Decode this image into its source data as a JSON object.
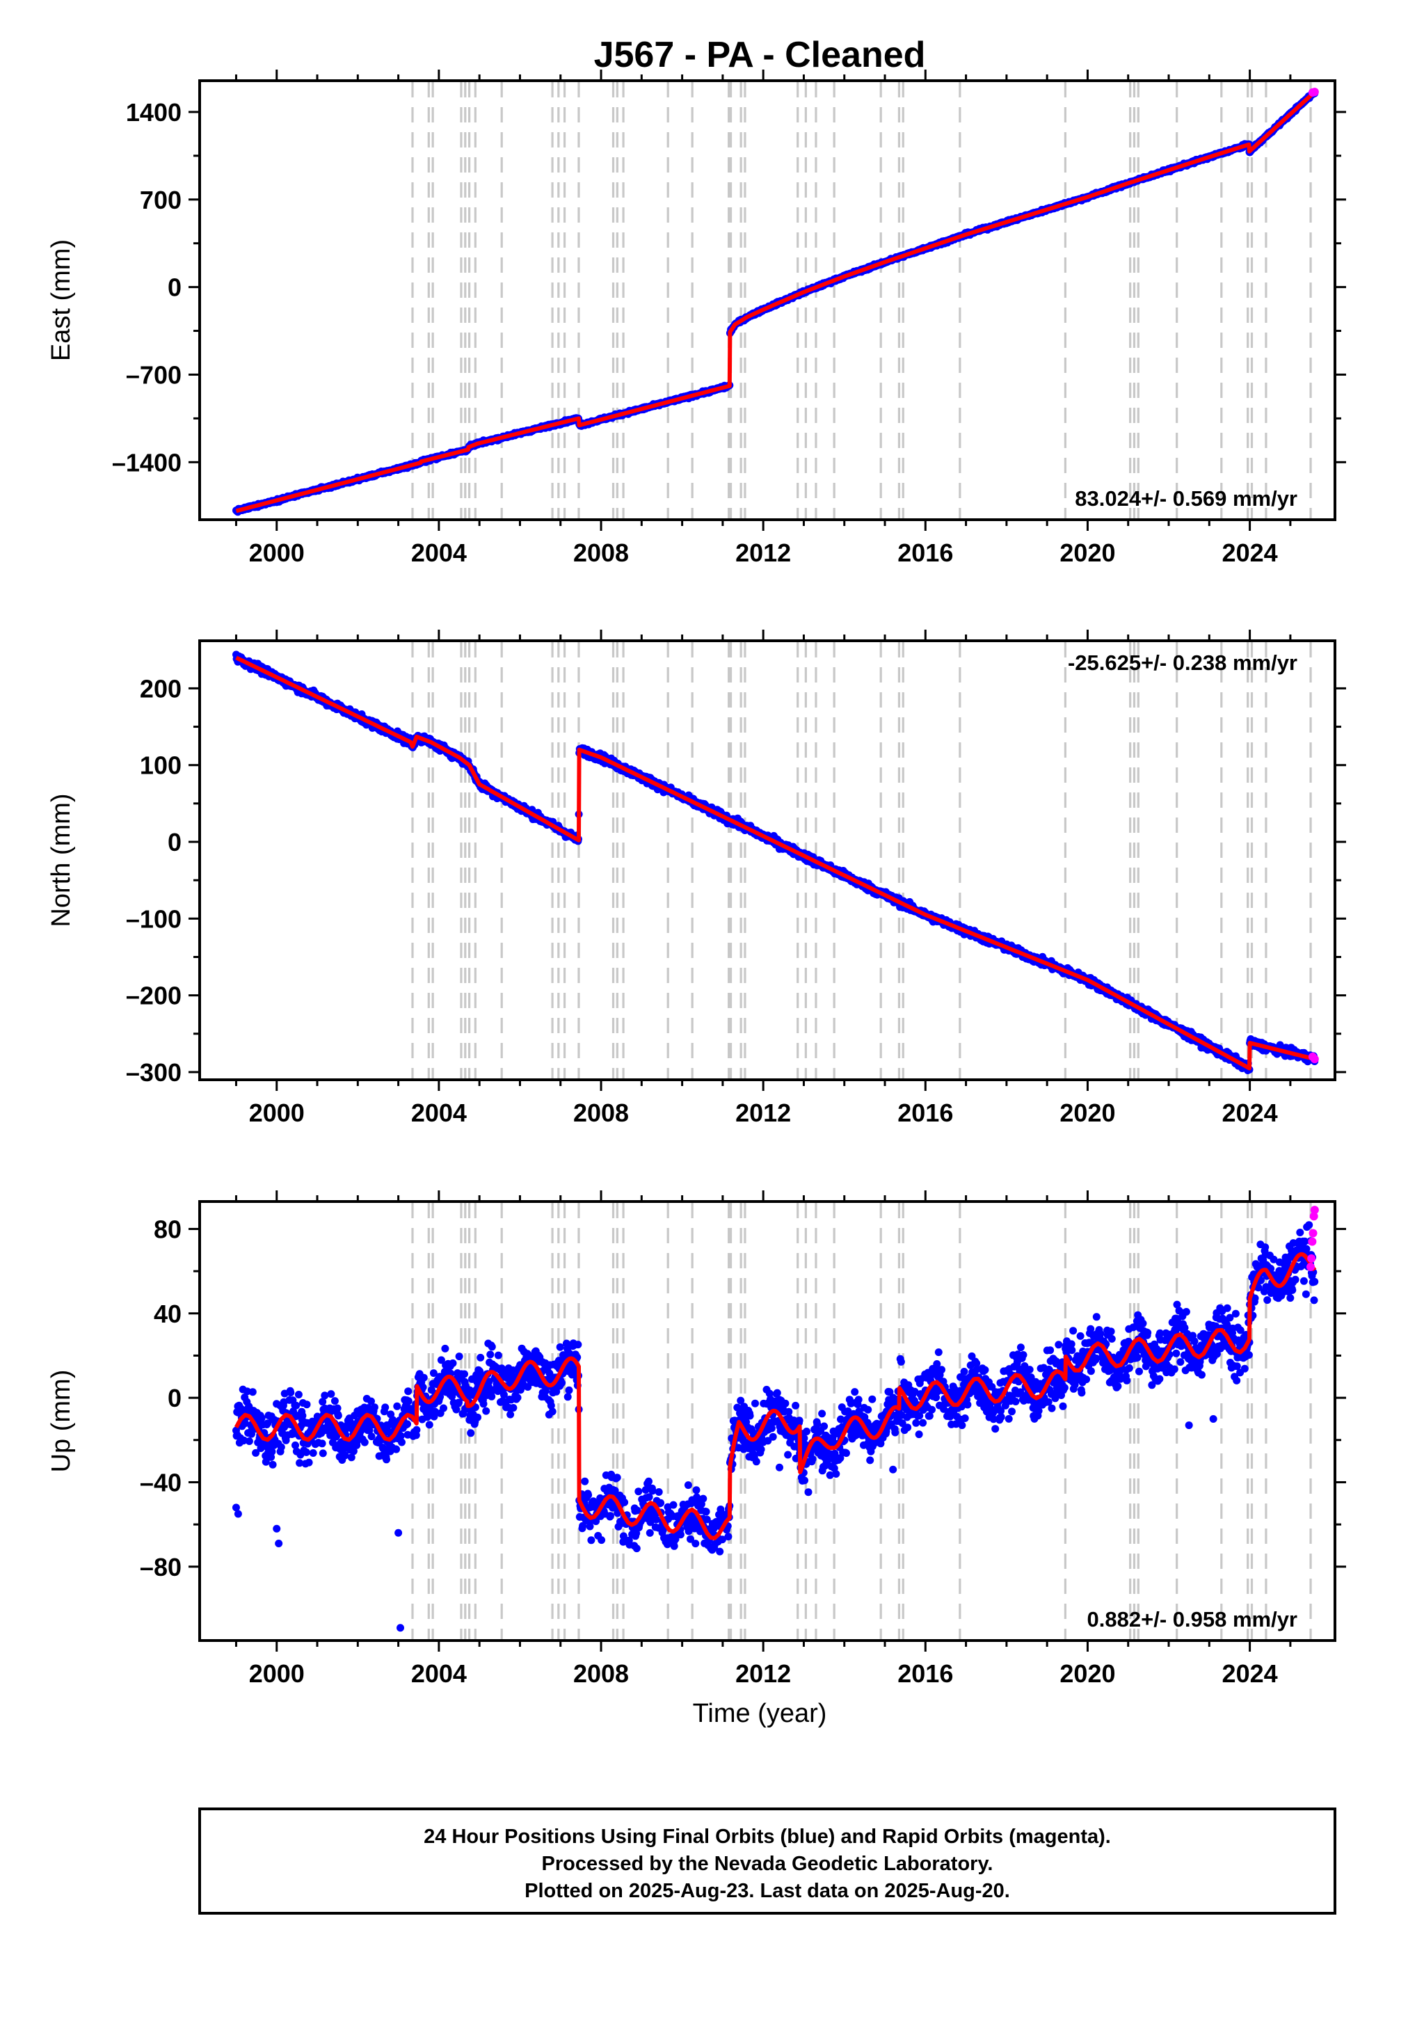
{
  "title": "J567  - PA - Cleaned",
  "xlabel": "Time (year)",
  "x_ticks": [
    "2000",
    "2004",
    "2008",
    "2012",
    "2016",
    "2020",
    "2024"
  ],
  "footer": {
    "line1": "24 Hour Positions Using Final Orbits (blue) and Rapid Orbits (magenta).",
    "line2": "Processed by the Nevada Geodetic Laboratory.",
    "line3": "Plotted on 2025-Aug-23. Last data on 2025-Aug-20."
  },
  "colors": {
    "final_orbits": "#0000ff",
    "rapid_orbits": "#ff00ff",
    "model": "#ff0000",
    "event_lines": "#c8c8c8"
  },
  "chart_data": [
    {
      "type": "scatter",
      "component": "east",
      "ylabel": "East (mm)",
      "xlim": [
        1998.1,
        2026.1
      ],
      "ylim": [
        -1860,
        1650
      ],
      "y_ticks": [
        -1400,
        -700,
        0,
        700,
        1400
      ],
      "y_tick_labels": [
        "–1400",
        "–700",
        "0",
        "700",
        "1400"
      ],
      "rate_label": "83.024+/- 0.569 mm/yr",
      "rate_position": "bottom-right",
      "noise_amplitude": 8,
      "model": [
        [
          1999.0,
          -1790
        ],
        [
          2003.55,
          -1405
        ],
        [
          2003.56,
          -1395
        ],
        [
          2004.72,
          -1300
        ],
        [
          2004.73,
          -1280
        ],
        [
          2004.95,
          -1252
        ],
        [
          2007.45,
          -1050
        ],
        [
          2007.46,
          -1105
        ],
        [
          2011.17,
          -790
        ],
        [
          2011.18,
          -360
        ],
        [
          2011.3,
          -300
        ],
        [
          2011.6,
          -240
        ],
        [
          2012.0,
          -180
        ],
        [
          2012.5,
          -110
        ],
        [
          2013.0,
          -40
        ],
        [
          2014.0,
          85
        ],
        [
          2015.0,
          200
        ],
        [
          2016.0,
          310
        ],
        [
          2017.0,
          420
        ],
        [
          2018.0,
          520
        ],
        [
          2019.0,
          620
        ],
        [
          2020.0,
          720
        ],
        [
          2021.0,
          830
        ],
        [
          2022.0,
          935
        ],
        [
          2023.0,
          1040
        ],
        [
          2023.98,
          1140
        ],
        [
          2023.99,
          1085
        ],
        [
          2025.6,
          1560
        ]
      ],
      "rapid_points": [
        [
          2025.55,
          1556
        ],
        [
          2025.6,
          1560
        ]
      ]
    },
    {
      "type": "scatter",
      "component": "north",
      "ylabel": "North (mm)",
      "xlim": [
        1998.1,
        2026.1
      ],
      "ylim": [
        -310,
        262
      ],
      "y_ticks": [
        -300,
        -200,
        -100,
        0,
        100,
        200
      ],
      "y_tick_labels": [
        "–300",
        "–200",
        "–100",
        "0",
        "100",
        "200"
      ],
      "rate_label": "-25.625+/- 0.238 mm/yr",
      "rate_position": "top-right",
      "noise_amplitude": 3.5,
      "model": [
        [
          1999.0,
          240
        ],
        [
          2003.3,
          130
        ],
        [
          2003.35,
          124
        ],
        [
          2003.45,
          137
        ],
        [
          2003.8,
          130
        ],
        [
          2004.5,
          110
        ],
        [
          2004.75,
          100
        ],
        [
          2005.0,
          75
        ],
        [
          2007.45,
          2
        ],
        [
          2007.46,
          120
        ],
        [
          2008.0,
          110
        ],
        [
          2011.2,
          28
        ],
        [
          2016.0,
          -95
        ],
        [
          2020.0,
          -180
        ],
        [
          2023.99,
          -295
        ],
        [
          2024.0,
          -262
        ],
        [
          2025.6,
          -283
        ]
      ],
      "rapid_points": [
        [
          2025.55,
          -280
        ],
        [
          2025.6,
          -283
        ]
      ]
    },
    {
      "type": "scatter",
      "component": "up",
      "ylabel": "Up (mm)",
      "xlim": [
        1998.1,
        2026.1
      ],
      "ylim": [
        -115,
        93
      ],
      "y_ticks": [
        -80,
        -40,
        0,
        40,
        80
      ],
      "y_tick_labels": [
        "–80",
        "–40",
        "0",
        "40",
        "80"
      ],
      "rate_label": "0.882+/- 0.958 mm/yr",
      "rate_position": "bottom-right",
      "noise_amplitude": 9,
      "seasonal_amplitude": 6,
      "model": [
        [
          1999.0,
          -14
        ],
        [
          2003.45,
          -14
        ],
        [
          2003.46,
          4
        ],
        [
          2004.7,
          4
        ],
        [
          2004.71,
          2
        ],
        [
          2005.0,
          3
        ],
        [
          2005.6,
          10
        ],
        [
          2007.45,
          13
        ],
        [
          2007.46,
          -50
        ],
        [
          2011.17,
          -62
        ],
        [
          2011.18,
          -38
        ],
        [
          2011.4,
          -15
        ],
        [
          2012.9,
          -10
        ],
        [
          2012.91,
          -32
        ],
        [
          2013.7,
          -18
        ],
        [
          2015.35,
          -10
        ],
        [
          2015.36,
          0
        ],
        [
          2019.45,
          7
        ],
        [
          2019.46,
          18
        ],
        [
          2023.99,
          28
        ],
        [
          2024.0,
          47
        ],
        [
          2024.4,
          57
        ],
        [
          2025.6,
          64
        ]
      ],
      "outliers": [
        [
          1999.0,
          -52
        ],
        [
          1999.05,
          -55
        ],
        [
          2000.0,
          -62
        ],
        [
          2000.05,
          -69
        ],
        [
          2003.0,
          -64
        ],
        [
          2003.05,
          -109
        ],
        [
          2012.4,
          -33
        ],
        [
          2015.2,
          -34
        ],
        [
          2022.5,
          -13
        ],
        [
          2023.1,
          -10
        ]
      ],
      "rapid_points": [
        [
          2025.5,
          62
        ],
        [
          2025.52,
          66
        ],
        [
          2025.54,
          74
        ],
        [
          2025.56,
          78
        ],
        [
          2025.58,
          86
        ],
        [
          2025.6,
          89
        ]
      ]
    }
  ],
  "event_lines": [
    2003.35,
    2003.75,
    2003.85,
    2004.55,
    2004.65,
    2004.75,
    2004.9,
    2005.55,
    2006.8,
    2006.95,
    2007.1,
    2007.45,
    2008.3,
    2008.4,
    2008.55,
    2009.65,
    2010.25,
    2011.15,
    2011.2,
    2011.45,
    2011.55,
    2012.85,
    2013.05,
    2013.3,
    2013.75,
    2014.9,
    2015.35,
    2015.45,
    2016.85,
    2019.45,
    2021.05,
    2021.15,
    2021.25,
    2022.2,
    2023.3,
    2023.95,
    2024.05,
    2024.4,
    2025.5
  ]
}
